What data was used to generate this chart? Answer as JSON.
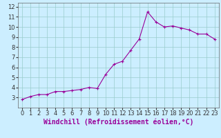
{
  "xlabel": "Windchill (Refroidissement éolien,°C)",
  "background_color": "#cceeff",
  "grid_color": "#99cccc",
  "line_color": "#990099",
  "marker": "+",
  "x": [
    0,
    1,
    2,
    3,
    4,
    5,
    6,
    7,
    8,
    9,
    10,
    11,
    12,
    13,
    14,
    15,
    16,
    17,
    18,
    19,
    20,
    21,
    22,
    23
  ],
  "y": [
    2.8,
    3.1,
    3.3,
    3.3,
    3.6,
    3.6,
    3.7,
    3.8,
    4.0,
    3.9,
    5.3,
    6.3,
    6.6,
    7.7,
    8.8,
    11.5,
    10.5,
    10.0,
    10.1,
    9.9,
    9.7,
    9.3,
    9.3,
    8.8
  ],
  "xlim": [
    -0.5,
    23.5
  ],
  "ylim": [
    2,
    12.4
  ],
  "yticks": [
    3,
    4,
    5,
    6,
    7,
    8,
    9,
    10,
    11,
    12
  ],
  "xticks": [
    0,
    1,
    2,
    3,
    4,
    5,
    6,
    7,
    8,
    9,
    10,
    11,
    12,
    13,
    14,
    15,
    16,
    17,
    18,
    19,
    20,
    21,
    22,
    23
  ],
  "xlabel_fontsize": 7,
  "tick_fontsize": 6,
  "linewidth": 0.8,
  "markersize": 3,
  "figsize": [
    3.2,
    2.0
  ],
  "dpi": 100
}
